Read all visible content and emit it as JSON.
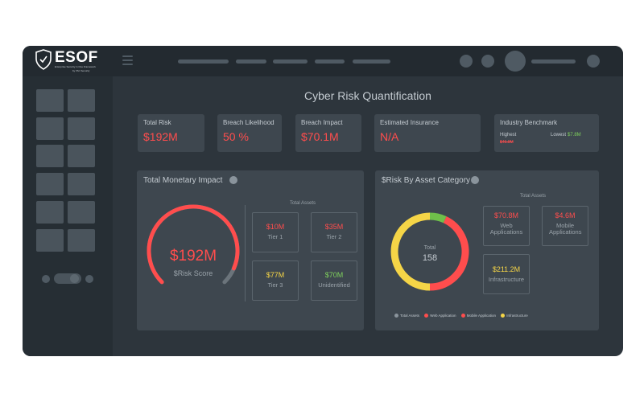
{
  "logo": {
    "name": "ESOF",
    "tagline": "Enterprise Security in One Framework",
    "byline": "by TAC Security"
  },
  "page": {
    "title": "Cyber Risk Quantification"
  },
  "kpis": [
    {
      "label": "Total Risk",
      "value": "$192M"
    },
    {
      "label": "Breach Likelihood",
      "value": "50 %"
    },
    {
      "label": "Breach Impact",
      "value": "$70.1M"
    },
    {
      "label": "Estimated Insurance",
      "value": "N/A"
    }
  ],
  "benchmark": {
    "label": "Industry Benchmark",
    "highest_label": "Highest",
    "highest_value": "$46.9M",
    "lowest_label": "Lowest",
    "lowest_value": "$7.8M"
  },
  "monetary": {
    "title": "Total Monetary Impact",
    "gauge_value": "$192M",
    "gauge_label": "$Risk Score",
    "gauge_fraction": 0.92,
    "assets_caption": "Total Assets",
    "tiers": [
      {
        "value": "$10M",
        "label": "Tier 1",
        "color": "#ff4d4d"
      },
      {
        "value": "$35M",
        "label": "Tier 2",
        "color": "#ff4d4d"
      },
      {
        "value": "$77M",
        "label": "Tier 3",
        "color": "#f5d547"
      },
      {
        "value": "$70M",
        "label": "Unidentified",
        "color": "#7fd05c"
      }
    ]
  },
  "asset_category": {
    "title": "$Risk By Asset Category",
    "assets_caption": "Total Assets",
    "donut_total_label": "Total",
    "donut_total_value": "158",
    "categories": [
      {
        "value": "$70.8M",
        "label": "Web Applications",
        "color": "#ff4d4d"
      },
      {
        "value": "$4.6M",
        "label": "Mobile Applications",
        "color": "#ff4d4d"
      },
      {
        "value": "$211.2M",
        "label": "Infrastructure",
        "color": "#f5d547"
      }
    ],
    "donut_segments": [
      {
        "name": "Mobile Application",
        "fraction": 0.07,
        "color": "#6fbf4a"
      },
      {
        "name": "Web Application",
        "fraction": 0.43,
        "color": "#ff4d4d"
      },
      {
        "name": "Infrastructure",
        "fraction": 0.5,
        "color": "#f5d547"
      }
    ],
    "legend": [
      {
        "label": "Total Assets",
        "color": "#8a949c"
      },
      {
        "label": "Web Application",
        "color": "#ff4d4d"
      },
      {
        "label": "Mobile Application",
        "color": "#ff4d4d"
      },
      {
        "label": "Infrastructure",
        "color": "#f5d547"
      }
    ]
  },
  "colors": {
    "accent_red": "#ff4d4d",
    "panel": "#3e474f",
    "background": "#2d353c"
  }
}
